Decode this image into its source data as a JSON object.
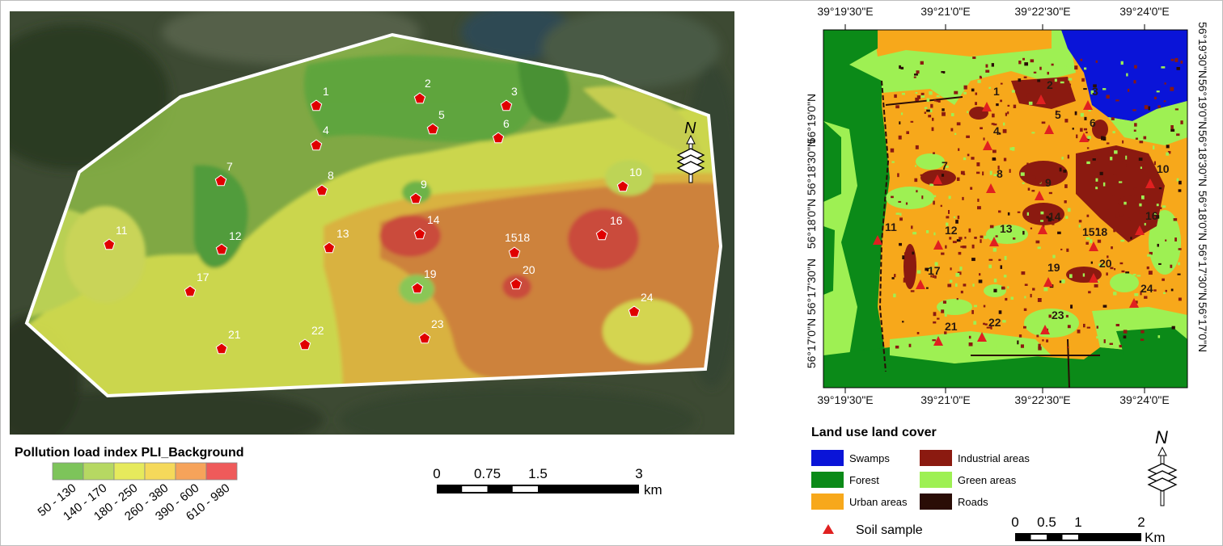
{
  "left_map": {
    "legend": {
      "title": "Pollution load index PLI_Background",
      "classes": [
        {
          "label": "50 - 130",
          "color": "#7dc45a"
        },
        {
          "label": "140 - 170",
          "color": "#b6d862"
        },
        {
          "label": "180 - 250",
          "color": "#e6ea5c"
        },
        {
          "label": "260 - 380",
          "color": "#f5d95a"
        },
        {
          "label": "390 - 600",
          "color": "#f6a35a"
        },
        {
          "label": "610 - 980",
          "color": "#ef5a5a"
        }
      ]
    },
    "scale": {
      "ticks": [
        "0",
        "0.75",
        "1.5",
        "3"
      ],
      "unit": "km"
    },
    "north": "N",
    "samples": [
      "1",
      "2",
      "3",
      "4",
      "5",
      "6",
      "7",
      "8",
      "9",
      "10",
      "11",
      "12",
      "13",
      "14",
      "1518",
      "16",
      "17",
      "19",
      "20",
      "21",
      "22",
      "23",
      "24"
    ]
  },
  "right_map": {
    "top_ticks": [
      "39°19'30\"E",
      "39°21'0\"E",
      "39°22'30\"E",
      "39°24'0\"E"
    ],
    "bottom_ticks": [
      "39°19'30\"E",
      "39°21'0\"E",
      "39°22'30\"E",
      "39°24'0\"E"
    ],
    "left_ticks": [
      "56°19'0\"N",
      "56°18'30\"N",
      "56°18'0\"N",
      "56°17'30\"N",
      "56°17'0\"N"
    ],
    "right_ticks": [
      "56°19'30\"N",
      "56°19'0\"N",
      "56°18'30\"N",
      "56°18'0\"N",
      "56°17'30\"N",
      "56°17'0\"N"
    ],
    "legend": {
      "title": "Land use land cover",
      "classes": [
        {
          "label": "Swamps",
          "color": "#0a14d8"
        },
        {
          "label": "Industrial areas",
          "color": "#8b1a10"
        },
        {
          "label": "Forest",
          "color": "#0b8a18"
        },
        {
          "label": "Green areas",
          "color": "#9ef053"
        },
        {
          "label": "Urban areas",
          "color": "#f7a81b"
        },
        {
          "label": "Roads",
          "color": "#2a0d06"
        }
      ],
      "sample_label": "Soil sample",
      "sample_color": "#e02020"
    },
    "scale": {
      "ticks": [
        "0",
        "0.5",
        "1",
        "2"
      ],
      "unit": "Km"
    },
    "north": "N",
    "samples": [
      "1",
      "2",
      "3",
      "4",
      "5",
      "6",
      "7",
      "8",
      "9",
      "10",
      "11",
      "12",
      "13",
      "14",
      "1518",
      "16",
      "17",
      "19",
      "20",
      "21",
      "22",
      "23",
      "24"
    ]
  }
}
